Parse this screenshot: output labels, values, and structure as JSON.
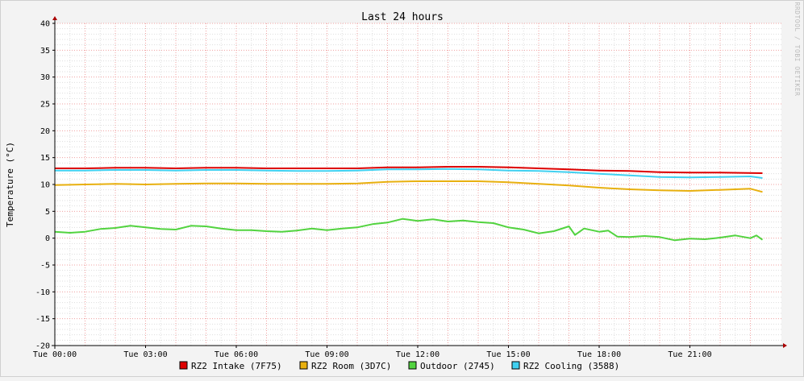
{
  "chart_data": {
    "type": "line",
    "title": "Last 24 hours",
    "ylabel": "Temperature (°C)",
    "xlabel": "",
    "watermark": "RRDTOOL / TOBI OETIKER",
    "ylim": [
      -20,
      40
    ],
    "yticks": [
      40,
      35,
      30,
      25,
      20,
      15,
      10,
      5,
      0,
      -5,
      -10,
      -15,
      -20
    ],
    "x_range_hours": [
      0,
      23.4
    ],
    "xticks": [
      {
        "hour": 0,
        "label": "Tue 00:00"
      },
      {
        "hour": 3,
        "label": "Tue 03:00"
      },
      {
        "hour": 6,
        "label": "Tue 06:00"
      },
      {
        "hour": 9,
        "label": "Tue 09:00"
      },
      {
        "hour": 12,
        "label": "Tue 12:00"
      },
      {
        "hour": 15,
        "label": "Tue 15:00"
      },
      {
        "hour": 18,
        "label": "Tue 18:00"
      },
      {
        "hour": 21,
        "label": "Tue 21:00"
      }
    ],
    "grid": true,
    "legend": "bottom",
    "series": [
      {
        "name": "RZ2 Intake (7F75)",
        "color": "#dd0000",
        "points": [
          [
            0,
            13.0
          ],
          [
            1,
            13.0
          ],
          [
            2,
            13.1
          ],
          [
            3,
            13.1
          ],
          [
            4,
            13.0
          ],
          [
            5,
            13.1
          ],
          [
            6,
            13.1
          ],
          [
            7,
            13.0
          ],
          [
            8,
            13.0
          ],
          [
            9,
            13.0
          ],
          [
            10,
            13.0
          ],
          [
            11,
            13.2
          ],
          [
            12,
            13.2
          ],
          [
            13,
            13.3
          ],
          [
            14,
            13.3
          ],
          [
            15,
            13.2
          ],
          [
            16,
            13.0
          ],
          [
            17,
            12.8
          ],
          [
            18,
            12.6
          ],
          [
            19,
            12.5
          ],
          [
            20,
            12.3
          ],
          [
            21,
            12.2
          ],
          [
            22,
            12.2
          ],
          [
            23.4,
            12.1
          ]
        ]
      },
      {
        "name": "RZ2 Room (3D7C)",
        "color": "#e8b00f",
        "points": [
          [
            0,
            9.9
          ],
          [
            1,
            10.0
          ],
          [
            2,
            10.1
          ],
          [
            3,
            10.0
          ],
          [
            4,
            10.1
          ],
          [
            5,
            10.2
          ],
          [
            6,
            10.2
          ],
          [
            7,
            10.1
          ],
          [
            8,
            10.1
          ],
          [
            9,
            10.1
          ],
          [
            10,
            10.2
          ],
          [
            11,
            10.5
          ],
          [
            12,
            10.6
          ],
          [
            13,
            10.6
          ],
          [
            14,
            10.6
          ],
          [
            15,
            10.4
          ],
          [
            16,
            10.1
          ],
          [
            17,
            9.8
          ],
          [
            18,
            9.4
          ],
          [
            19,
            9.1
          ],
          [
            20,
            8.9
          ],
          [
            21,
            8.8
          ],
          [
            22,
            9.0
          ],
          [
            23,
            9.2
          ],
          [
            23.4,
            8.6
          ]
        ]
      },
      {
        "name": "Outdoor (2745)",
        "color": "#52d33f",
        "points": [
          [
            0,
            1.2
          ],
          [
            0.5,
            1.0
          ],
          [
            1,
            1.2
          ],
          [
            1.5,
            1.7
          ],
          [
            2,
            1.9
          ],
          [
            2.5,
            2.3
          ],
          [
            3,
            2.0
          ],
          [
            3.5,
            1.7
          ],
          [
            4,
            1.6
          ],
          [
            4.5,
            2.3
          ],
          [
            5,
            2.2
          ],
          [
            5.5,
            1.8
          ],
          [
            6,
            1.5
          ],
          [
            6.5,
            1.5
          ],
          [
            7,
            1.3
          ],
          [
            7.5,
            1.2
          ],
          [
            8,
            1.4
          ],
          [
            8.5,
            1.8
          ],
          [
            9,
            1.5
          ],
          [
            9.5,
            1.8
          ],
          [
            10,
            2.0
          ],
          [
            10.5,
            2.6
          ],
          [
            11,
            2.9
          ],
          [
            11.5,
            3.6
          ],
          [
            12,
            3.2
          ],
          [
            12.5,
            3.5
          ],
          [
            13,
            3.1
          ],
          [
            13.5,
            3.3
          ],
          [
            14,
            3.0
          ],
          [
            14.5,
            2.8
          ],
          [
            15,
            2.0
          ],
          [
            15.5,
            1.6
          ],
          [
            16,
            0.9
          ],
          [
            16.5,
            1.3
          ],
          [
            17,
            2.2
          ],
          [
            17.2,
            0.6
          ],
          [
            17.5,
            1.8
          ],
          [
            18,
            1.2
          ],
          [
            18.3,
            1.4
          ],
          [
            18.6,
            0.3
          ],
          [
            19,
            0.2
          ],
          [
            19.5,
            0.4
          ],
          [
            20,
            0.2
          ],
          [
            20.5,
            -0.4
          ],
          [
            21,
            -0.1
          ],
          [
            21.5,
            -0.2
          ],
          [
            22,
            0.1
          ],
          [
            22.5,
            0.5
          ],
          [
            23,
            0.0
          ],
          [
            23.2,
            0.5
          ],
          [
            23.4,
            -0.3
          ]
        ]
      },
      {
        "name": "RZ2 Cooling (3588)",
        "color": "#40d0f0",
        "points": [
          [
            0,
            12.6
          ],
          [
            1,
            12.6
          ],
          [
            2,
            12.7
          ],
          [
            3,
            12.7
          ],
          [
            4,
            12.6
          ],
          [
            5,
            12.7
          ],
          [
            6,
            12.7
          ],
          [
            7,
            12.6
          ],
          [
            8,
            12.5
          ],
          [
            9,
            12.5
          ],
          [
            10,
            12.6
          ],
          [
            11,
            12.8
          ],
          [
            12,
            12.8
          ],
          [
            13,
            12.9
          ],
          [
            14,
            12.8
          ],
          [
            15,
            12.6
          ],
          [
            16,
            12.5
          ],
          [
            17,
            12.3
          ],
          [
            18,
            12.0
          ],
          [
            19,
            11.7
          ],
          [
            20,
            11.4
          ],
          [
            21,
            11.3
          ],
          [
            22,
            11.4
          ],
          [
            23,
            11.5
          ],
          [
            23.4,
            11.2
          ]
        ]
      }
    ]
  }
}
